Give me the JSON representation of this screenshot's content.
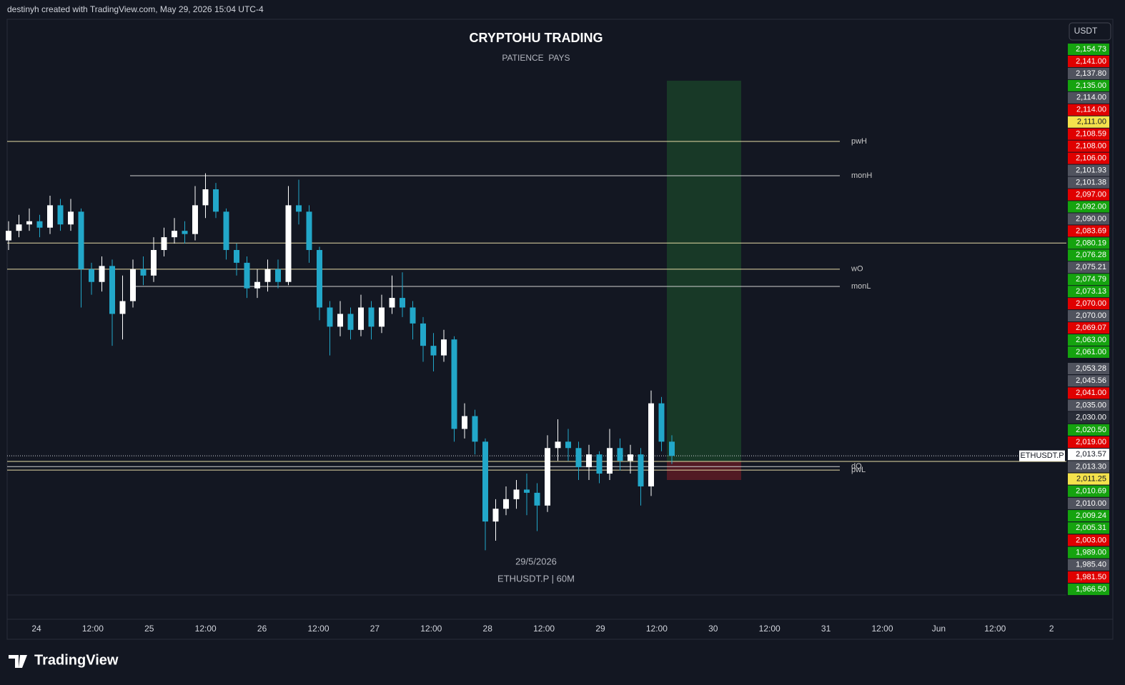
{
  "header": {
    "credit": "destinyh created with TradingView.com, May 29, 2026 15:04 UTC-4"
  },
  "chart_data": {
    "type": "candlestick",
    "title": "CRYPTOHU TRADING",
    "subtitle": "PATIENCE  PAYS",
    "currency": "USDT",
    "date_note": "29/5/2026",
    "symbol_note": "ETHUSDT.P | 60M",
    "symbol_tag": "ETHUSDT.P",
    "up_color": "#ffffff",
    "down_color": "#22a7c9",
    "ylim": [
      1970,
      2150
    ],
    "x_labels": [
      "24",
      "12:00",
      "25",
      "12:00",
      "26",
      "12:00",
      "27",
      "12:00",
      "28",
      "12:00",
      "29",
      "12:00",
      "30",
      "12:00",
      "31",
      "12:00",
      "Jun",
      "12:00",
      "2"
    ],
    "open": [
      2081,
      2084,
      2086,
      2087,
      2085,
      2092,
      2086,
      2090,
      2072,
      2068,
      2073,
      2058,
      2062,
      2072,
      2070,
      2078,
      2082,
      2084,
      2083,
      2092,
      2097,
      2090,
      2078,
      2074,
      2066,
      2068,
      2072,
      2068,
      2092,
      2090,
      2078,
      2060,
      2054,
      2058,
      2053,
      2060,
      2054,
      2060,
      2063,
      2060,
      2055,
      2048,
      2045,
      2050,
      2022,
      2026,
      2018,
      1993,
      1997,
      2000,
      2003,
      2002,
      1998,
      2016,
      2018,
      2016,
      2010,
      2014,
      2008,
      2016,
      2012,
      2014,
      2004,
      2030,
      2018
    ],
    "high": [
      2087,
      2089,
      2091,
      2089,
      2095,
      2094,
      2094,
      2091,
      2074,
      2076,
      2075,
      2070,
      2075,
      2076,
      2082,
      2085,
      2088,
      2087,
      2098,
      2102,
      2099,
      2091,
      2080,
      2076,
      2072,
      2075,
      2075,
      2098,
      2100,
      2092,
      2079,
      2062,
      2062,
      2060,
      2064,
      2062,
      2064,
      2070,
      2071,
      2062,
      2057,
      2052,
      2053,
      2051,
      2030,
      2028,
      2019,
      2000,
      2004,
      2006,
      2008,
      2005,
      2020,
      2025,
      2022,
      2018,
      2017,
      2015,
      2022,
      2019,
      2017,
      2016,
      2034,
      2032,
      2020
    ],
    "low": [
      2078,
      2082,
      2084,
      2082,
      2083,
      2084,
      2084,
      2060,
      2064,
      2065,
      2048,
      2050,
      2060,
      2067,
      2068,
      2076,
      2080,
      2080,
      2081,
      2088,
      2088,
      2075,
      2070,
      2063,
      2063,
      2065,
      2066,
      2067,
      2086,
      2074,
      2056,
      2045,
      2051,
      2050,
      2051,
      2050,
      2052,
      2058,
      2057,
      2050,
      2043,
      2040,
      2043,
      2018,
      2019,
      2014,
      1984,
      1987,
      1995,
      1997,
      1995,
      1990,
      1996,
      2012,
      2012,
      2006,
      2006,
      2005,
      2006,
      2009,
      2008,
      1998,
      2001,
      2015,
      2011
    ],
    "close": [
      2084,
      2086,
      2087,
      2085,
      2092,
      2086,
      2090,
      2072,
      2068,
      2073,
      2058,
      2062,
      2072,
      2070,
      2078,
      2082,
      2084,
      2083,
      2092,
      2097,
      2090,
      2078,
      2074,
      2066,
      2068,
      2072,
      2068,
      2092,
      2090,
      2078,
      2060,
      2054,
      2058,
      2053,
      2060,
      2054,
      2060,
      2063,
      2060,
      2055,
      2048,
      2045,
      2050,
      2022,
      2026,
      2018,
      1993,
      1997,
      2000,
      2003,
      2002,
      1998,
      2016,
      2018,
      2016,
      2010,
      2014,
      2008,
      2016,
      2012,
      2014,
      2004,
      2030,
      2018,
      2013.57
    ],
    "levels": [
      {
        "name": "pwH",
        "value": 2112,
        "color": "#e6dca6",
        "span": "week"
      },
      {
        "name": "monH",
        "value": 2101.25,
        "color": "#d0d0d0",
        "span": "monday"
      },
      {
        "value": 2080.19,
        "color": "#e6dca6",
        "span": "full"
      },
      {
        "name": "wO",
        "value": 2072,
        "color": "#e6dca6",
        "span": "week"
      },
      {
        "name": "monL",
        "value": 2066.6,
        "color": "#d0d0d0",
        "span": "monday"
      },
      {
        "value": 2011.8,
        "color": "#e6dca6",
        "span": "full"
      },
      {
        "name": "dO",
        "value": 2010.2,
        "color": "#d0d0d0",
        "span": "week"
      },
      {
        "name": "pwL",
        "value": 2009.1,
        "color": "#e6dca6",
        "span": "week"
      }
    ],
    "last_price": 2013.57,
    "position": {
      "target": 2131,
      "entry": 2011.8,
      "stop": 2006
    },
    "price_tags": [
      {
        "label": "2,154.73",
        "color": "#15a30f"
      },
      {
        "label": "2,141.00",
        "color": "#e00000"
      },
      {
        "label": "2,137.80",
        "color": "#50535e"
      },
      {
        "label": "2,135.00",
        "color": "#15a30f"
      },
      {
        "label": "2,114.00",
        "color": "#50535e"
      },
      {
        "label": "2,114.00",
        "color": "#e00000"
      },
      {
        "label": "2,111.00",
        "color": "#f4e24c"
      },
      {
        "label": "2,108.59",
        "color": "#e00000"
      },
      {
        "label": "2,108.00",
        "color": "#e00000"
      },
      {
        "label": "2,106.00",
        "color": "#e00000"
      },
      {
        "label": "2,101.93",
        "color": "#50535e"
      },
      {
        "label": "2,101.38",
        "color": "#50535e"
      },
      {
        "label": "2,097.00",
        "color": "#e00000"
      },
      {
        "label": "2,092.00",
        "color": "#15a30f"
      },
      {
        "label": "2,090.00",
        "color": "#50535e"
      },
      {
        "label": "2,083.69",
        "color": "#e00000"
      },
      {
        "label": "2,080.19",
        "color": "#15a30f"
      },
      {
        "label": "2,076.28",
        "color": "#15a30f"
      },
      {
        "label": "2,075.21",
        "color": "#50535e"
      },
      {
        "label": "2,074.79",
        "color": "#15a30f"
      },
      {
        "label": "2,073.13",
        "color": "#15a30f"
      },
      {
        "label": "2,070.00",
        "color": "#e00000"
      },
      {
        "label": "2,070.00",
        "color": "#50535e"
      },
      {
        "label": "2,069.07",
        "color": "#e00000"
      },
      {
        "label": "2,063.00",
        "color": "#15a30f"
      },
      {
        "label": "2,061.00",
        "color": "#15a30f"
      },
      {
        "label": "2,053.28",
        "color": "#50535e"
      },
      {
        "label": "2,045.56",
        "color": "#50535e"
      },
      {
        "label": "2,041.00",
        "color": "#e00000"
      },
      {
        "label": "2,035.00",
        "color": "#50535e"
      },
      {
        "label": "2,030.00",
        "color": "#2a2e39"
      },
      {
        "label": "2,020.50",
        "color": "#15a30f"
      },
      {
        "label": "2,019.00",
        "color": "#e00000"
      },
      {
        "label": "2,013.57",
        "color": "#ffffff"
      },
      {
        "label": "2,013.30",
        "color": "#50535e"
      },
      {
        "label": "2,011.25",
        "color": "#f4e24c"
      },
      {
        "label": "2,010.69",
        "color": "#15a30f"
      },
      {
        "label": "2,010.00",
        "color": "#50535e"
      },
      {
        "label": "2,009.24",
        "color": "#15a30f"
      },
      {
        "label": "2,005.31",
        "color": "#15a30f"
      },
      {
        "label": "2,003.00",
        "color": "#e00000"
      },
      {
        "label": "1,989.00",
        "color": "#15a30f"
      },
      {
        "label": "1,985.40",
        "color": "#50535e"
      },
      {
        "label": "1,981.50",
        "color": "#e00000"
      },
      {
        "label": "1,966.50",
        "color": "#15a30f"
      }
    ]
  },
  "footer": {
    "logo": "TradingView"
  }
}
